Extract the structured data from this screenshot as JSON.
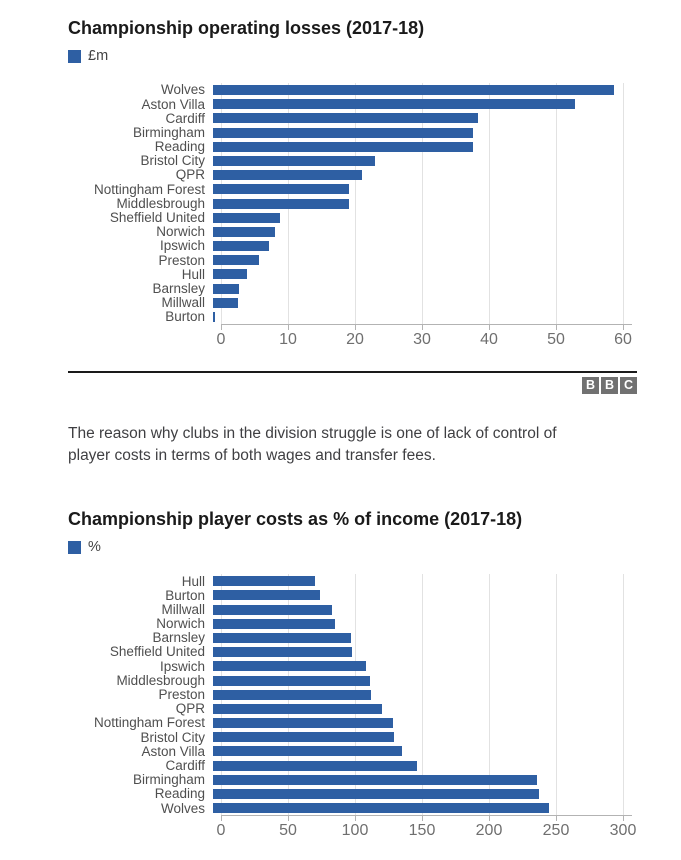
{
  "colors": {
    "bar": "#2e5fa3",
    "title_text": "#1a1a1a",
    "category_label": "#4f4f4f",
    "tick_label": "#6f6f6f",
    "gridline": "#e2e2e2",
    "axis_line": "#b3b3b3",
    "divider": "#1a1a1a",
    "body_text": "#3f3f42",
    "bbc_logo_gray": "#717171",
    "legend_text": "#444444"
  },
  "chart_data": [
    {
      "type": "bar",
      "orientation": "horizontal",
      "title": "Championship operating losses (2017-18)",
      "legend": "£m",
      "legend_position": "top-left",
      "grid": true,
      "categories": [
        "Wolves",
        "Aston Villa",
        "Cardiff",
        "Birmingham",
        "Reading",
        "Bristol City",
        "QPR",
        "Nottingham Forest",
        "Middlesbrough",
        "Sheffield United",
        "Norwich",
        "Ipswich",
        "Preston",
        "Hull",
        "Barnsley",
        "Millwall",
        "Burton"
      ],
      "values": [
        59.8,
        54,
        39.5,
        38.8,
        38.8,
        24.2,
        22.3,
        20.3,
        20.3,
        10,
        9.2,
        8.4,
        6.9,
        5.1,
        3.9,
        3.7,
        0.3
      ],
      "xlabel": "",
      "ylabel": "",
      "xlim": [
        0,
        60
      ],
      "xticks": [
        0,
        10,
        20,
        30,
        40,
        50,
        60
      ]
    },
    {
      "type": "bar",
      "orientation": "horizontal",
      "title": "Championship player costs as % of income (2017-18)",
      "legend": "%",
      "legend_position": "top-left",
      "grid": true,
      "categories": [
        "Hull",
        "Burton",
        "Millwall",
        "Norwich",
        "Barnsley",
        "Sheffield United",
        "Ipswich",
        "Middlesbrough",
        "Preston",
        "QPR",
        "Nottingham Forest",
        "Bristol City",
        "Aston Villa",
        "Cardiff",
        "Birmingham",
        "Reading",
        "Wolves"
      ],
      "values": [
        76,
        80,
        89,
        91,
        103,
        104,
        114,
        117,
        118,
        126,
        134,
        135,
        141,
        152,
        242,
        243,
        251
      ],
      "xlabel": "",
      "ylabel": "",
      "xlim": [
        0,
        300
      ],
      "xticks": [
        0,
        50,
        100,
        150,
        200,
        250,
        300
      ]
    }
  ],
  "body_paragraph": {
    "line1": "The reason why clubs in the division struggle is one of lack of control of",
    "line2": "player costs in terms of both wages and transfer fees."
  },
  "bbc_logo": {
    "letters": [
      "B",
      "B",
      "C"
    ]
  }
}
